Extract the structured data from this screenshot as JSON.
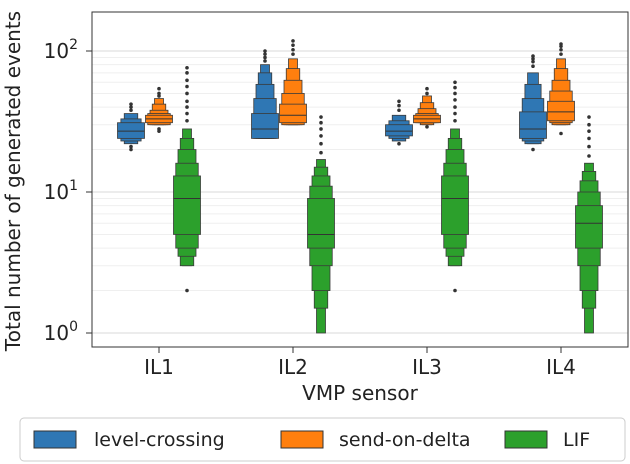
{
  "chart_data": {
    "type": "boxen",
    "title": "",
    "xlabel": "VMP sensor",
    "ylabel": "Total number of generated events",
    "yscale": "log",
    "ylim": [
      1,
      150
    ],
    "grid": true,
    "yticks": [
      {
        "value": 1,
        "base": "10",
        "exp": "0"
      },
      {
        "value": 10,
        "base": "10",
        "exp": "1"
      },
      {
        "value": 100,
        "base": "10",
        "exp": "2"
      }
    ],
    "categories": [
      "IL1",
      "IL2",
      "IL3",
      "IL4"
    ],
    "legend_position": "bottom",
    "series": [
      {
        "name": "level-crossing",
        "color": "#2f77b4",
        "boxes": [
          {
            "median": 27,
            "levels": [
              [
                24,
                31
              ],
              [
                23,
                33
              ],
              [
                22,
                36
              ]
            ],
            "outliers": [
              20,
              21,
              38,
              40,
              42
            ]
          },
          {
            "median": 28,
            "levels": [
              [
                24,
                36
              ],
              [
                24,
                46
              ],
              [
                24,
                58
              ],
              [
                24,
                70
              ],
              [
                24,
                80
              ]
            ],
            "outliers": [
              85,
              90,
              95,
              100
            ]
          },
          {
            "median": 27,
            "levels": [
              [
                25,
                30
              ],
              [
                24,
                32
              ],
              [
                23,
                35
              ]
            ],
            "outliers": [
              22,
              38,
              41,
              44
            ]
          },
          {
            "median": 28,
            "levels": [
              [
                24,
                37
              ],
              [
                23,
                46
              ],
              [
                22,
                58
              ],
              [
                22,
                70
              ]
            ],
            "outliers": [
              20,
              78,
              84,
              88,
              92
            ]
          }
        ]
      },
      {
        "name": "send-on-delta",
        "color": "#ff7f0e",
        "boxes": [
          {
            "median": 33,
            "levels": [
              [
                31,
                35
              ],
              [
                30,
                36
              ],
              [
                30,
                38
              ],
              [
                30,
                42
              ],
              [
                30,
                46
              ]
            ],
            "outliers": [
              27,
              28,
              48,
              50,
              54
            ]
          },
          {
            "median": 35,
            "levels": [
              [
                31,
                42
              ],
              [
                30,
                50
              ],
              [
                30,
                62
              ],
              [
                30,
                75
              ],
              [
                30,
                88
              ]
            ],
            "outliers": [
              95,
              102,
              110,
              118
            ]
          },
          {
            "median": 33,
            "levels": [
              [
                31,
                35
              ],
              [
                31,
                36
              ],
              [
                31,
                39
              ],
              [
                30,
                43
              ],
              [
                30,
                48
              ]
            ],
            "outliers": [
              29,
              50,
              54
            ]
          },
          {
            "median": 37,
            "levels": [
              [
                32,
                44
              ],
              [
                31,
                52
              ],
              [
                30,
                62
              ],
              [
                30,
                75
              ],
              [
                30,
                88
              ]
            ],
            "outliers": [
              26,
              95,
              102,
              108,
              112
            ]
          }
        ]
      },
      {
        "name": "LIF",
        "color": "#2ca02c",
        "boxes": [
          {
            "median": 9,
            "levels": [
              [
                5,
                13
              ],
              [
                4,
                16
              ],
              [
                3.5,
                20
              ],
              [
                3,
                24
              ],
              [
                3,
                28
              ]
            ],
            "outliers": [
              2,
              32,
              36,
              40,
              44,
              50,
              56,
              62,
              70,
              76
            ]
          },
          {
            "median": 5,
            "levels": [
              [
                4,
                9
              ],
              [
                3,
                11
              ],
              [
                2,
                13
              ],
              [
                1.5,
                15
              ],
              [
                1,
                17
              ]
            ],
            "outliers": [
              19,
              22,
              25,
              28,
              31,
              34
            ]
          },
          {
            "median": 9,
            "levels": [
              [
                5,
                13
              ],
              [
                4,
                16
              ],
              [
                3.5,
                20
              ],
              [
                3,
                24
              ],
              [
                3,
                28
              ]
            ],
            "outliers": [
              2,
              32,
              36,
              40,
              45,
              50,
              55,
              60
            ]
          },
          {
            "median": 6,
            "levels": [
              [
                4,
                8
              ],
              [
                3,
                10
              ],
              [
                2,
                12
              ],
              [
                1.5,
                14
              ],
              [
                1,
                16
              ]
            ],
            "outliers": [
              18,
              21,
              24,
              27,
              30,
              34
            ]
          }
        ]
      }
    ]
  }
}
